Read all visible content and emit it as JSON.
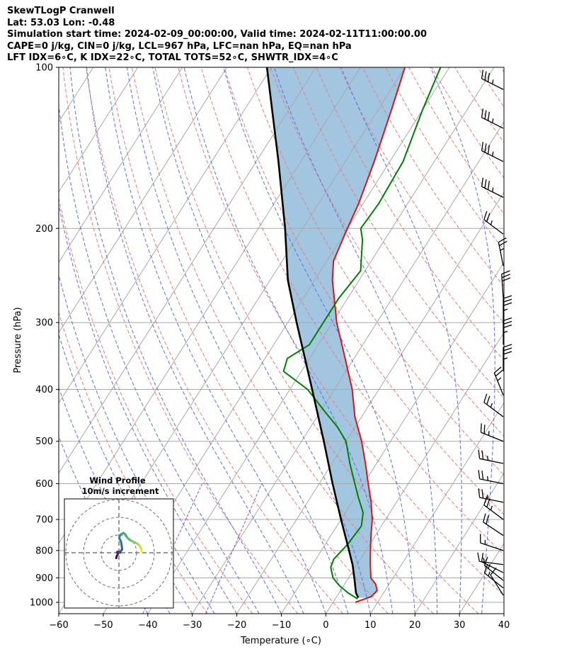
{
  "title_lines": [
    "SkewTLogP Cranwell",
    "Lat: 53.03   Lon: -0.48",
    "Simulation start time: 2024-02-09_00:00:00, Valid time: 2024-02-11T11:00:00.00",
    "CAPE=0 j/kg, CIN=0 j/kg, LCL=967 hPa, LFC=nan hPa, EQ=nan hPa",
    "LFT IDX=6∘C, K IDX=22∘C, TOTAL TOTS=52∘C, SHWTR_IDX=4∘C"
  ],
  "chart_data": {
    "type": "line",
    "subtype": "skew-t log-p",
    "xlabel": "Temperature (∘C)",
    "ylabel": "Pressure (hPa)",
    "xlim": [
      -60,
      40
    ],
    "ylim": [
      1050,
      100
    ],
    "x_ticks": [
      "−60",
      "−50",
      "−40",
      "−30",
      "−20",
      "−10",
      "0",
      "10",
      "20",
      "30",
      "40"
    ],
    "y_ticks": [
      "100",
      "200",
      "300",
      "400",
      "500",
      "600",
      "700",
      "800",
      "900",
      "1000"
    ],
    "y_scale": "log",
    "grid": true,
    "colors": {
      "temperature": "#e8100f",
      "dewpoint": "#008000",
      "parcel": "#000000",
      "shade": "#a2c6e0",
      "dry_adiabat": "#f07878",
      "moist_adiabat": "#5a6ef0",
      "isotherm": "#a8a8a8",
      "mixing_ratio": "#9b59b6"
    },
    "series": [
      {
        "key": "temperature",
        "points": [
          [
            1000,
            5.0
          ],
          [
            975,
            7.8
          ],
          [
            950,
            8.2
          ],
          [
            925,
            7.0
          ],
          [
            900,
            5.0
          ],
          [
            850,
            3.0
          ],
          [
            800,
            1.0
          ],
          [
            750,
            -1.0
          ],
          [
            700,
            -3.0
          ],
          [
            650,
            -5.7
          ],
          [
            600,
            -9.0
          ],
          [
            550,
            -12.5
          ],
          [
            500,
            -16.5
          ],
          [
            450,
            -21.5
          ],
          [
            400,
            -26.0
          ],
          [
            350,
            -32.0
          ],
          [
            300,
            -39.0
          ],
          [
            250,
            -46.0
          ],
          [
            230,
            -48.5
          ],
          [
            200,
            -50.0
          ],
          [
            180,
            -51.0
          ],
          [
            150,
            -53.5
          ],
          [
            120,
            -57.0
          ],
          [
            100,
            -60.0
          ]
        ]
      },
      {
        "key": "dewpoint",
        "points": [
          [
            985,
            5.0
          ],
          [
            960,
            2.0
          ],
          [
            930,
            -1.0
          ],
          [
            900,
            -3.5
          ],
          [
            860,
            -5.5
          ],
          [
            830,
            -6.0
          ],
          [
            780,
            -5.0
          ],
          [
            720,
            -4.5
          ],
          [
            680,
            -6.0
          ],
          [
            640,
            -9.0
          ],
          [
            600,
            -12.0
          ],
          [
            550,
            -16.0
          ],
          [
            500,
            -20.0
          ],
          [
            470,
            -24.0
          ],
          [
            440,
            -29.0
          ],
          [
            400,
            -36.0
          ],
          [
            370,
            -44.0
          ],
          [
            350,
            -45.0
          ],
          [
            330,
            -42.0
          ],
          [
            300,
            -42.0
          ],
          [
            270,
            -42.0
          ],
          [
            240,
            -41.0
          ],
          [
            210,
            -45.0
          ],
          [
            200,
            -47.0
          ],
          [
            180,
            -46.5
          ],
          [
            150,
            -47.0
          ],
          [
            120,
            -50.0
          ],
          [
            100,
            -52.0
          ]
        ]
      },
      {
        "key": "parcel",
        "points": [
          [
            980,
            5.0
          ],
          [
            960,
            3.8
          ],
          [
            900,
            1.3
          ],
          [
            850,
            -1.0
          ],
          [
            800,
            -3.8
          ],
          [
            700,
            -10.0
          ],
          [
            600,
            -17.0
          ],
          [
            500,
            -25.0
          ],
          [
            400,
            -35.0
          ],
          [
            300,
            -48.0
          ],
          [
            250,
            -56.0
          ],
          [
            200,
            -64.0
          ],
          [
            150,
            -75.0
          ],
          [
            100,
            -91.0
          ]
        ]
      }
    ],
    "wind_barbs": [
      {
        "pressure": 110,
        "u": -30,
        "v": 15
      },
      {
        "pressure": 130,
        "u": -30,
        "v": 15
      },
      {
        "pressure": 150,
        "u": -30,
        "v": 15
      },
      {
        "pressure": 175,
        "u": -30,
        "v": 15
      },
      {
        "pressure": 205,
        "u": -20,
        "v": 15
      },
      {
        "pressure": 235,
        "u": -5,
        "v": 25
      },
      {
        "pressure": 270,
        "u": -2,
        "v": 30
      },
      {
        "pressure": 300,
        "u": 0,
        "v": 35
      },
      {
        "pressure": 330,
        "u": 0,
        "v": 35
      },
      {
        "pressure": 370,
        "u": 0,
        "v": 35
      },
      {
        "pressure": 410,
        "u": -10,
        "v": 25
      },
      {
        "pressure": 450,
        "u": -20,
        "v": 15
      },
      {
        "pressure": 500,
        "u": -25,
        "v": 10
      },
      {
        "pressure": 550,
        "u": -25,
        "v": 5
      },
      {
        "pressure": 600,
        "u": -25,
        "v": 5
      },
      {
        "pressure": 650,
        "u": -25,
        "v": 5
      },
      {
        "pressure": 700,
        "u": -20,
        "v": 15
      },
      {
        "pressure": 750,
        "u": -15,
        "v": 10
      },
      {
        "pressure": 800,
        "u": -15,
        "v": 5
      },
      {
        "pressure": 850,
        "u": -15,
        "v": 2
      },
      {
        "pressure": 880,
        "u": -10,
        "v": 5
      },
      {
        "pressure": 910,
        "u": -10,
        "v": 8
      },
      {
        "pressure": 940,
        "u": -10,
        "v": 8
      },
      {
        "pressure": 970,
        "u": -5,
        "v": 8
      }
    ],
    "hodograph": {
      "title": "Wind Profile",
      "subtitle": "10m/s increment",
      "rings": [
        10,
        20,
        30
      ],
      "points": [
        [
          -1.5,
          -3
        ],
        [
          -1.2,
          -1.8
        ],
        [
          -0.6,
          -0.8
        ],
        [
          -1,
          0.4
        ],
        [
          -0.2,
          0.6
        ],
        [
          0.6,
          0
        ],
        [
          1.2,
          1.2
        ],
        [
          1.8,
          1.8
        ],
        [
          1.6,
          3.8
        ],
        [
          1.3,
          5.6
        ],
        [
          0.9,
          6.9
        ],
        [
          0.2,
          8.2
        ],
        [
          0.5,
          9.5
        ],
        [
          1,
          10.3
        ],
        [
          2.6,
          11.2
        ],
        [
          3.8,
          10.1
        ],
        [
          4.8,
          8.4
        ],
        [
          6,
          7.3
        ],
        [
          7.4,
          6.6
        ],
        [
          9.3,
          5.7
        ],
        [
          10.7,
          4.9
        ],
        [
          11.8,
          3.9
        ],
        [
          12.5,
          2.6
        ],
        [
          12.8,
          1.2
        ],
        [
          13,
          0.5
        ]
      ]
    }
  }
}
